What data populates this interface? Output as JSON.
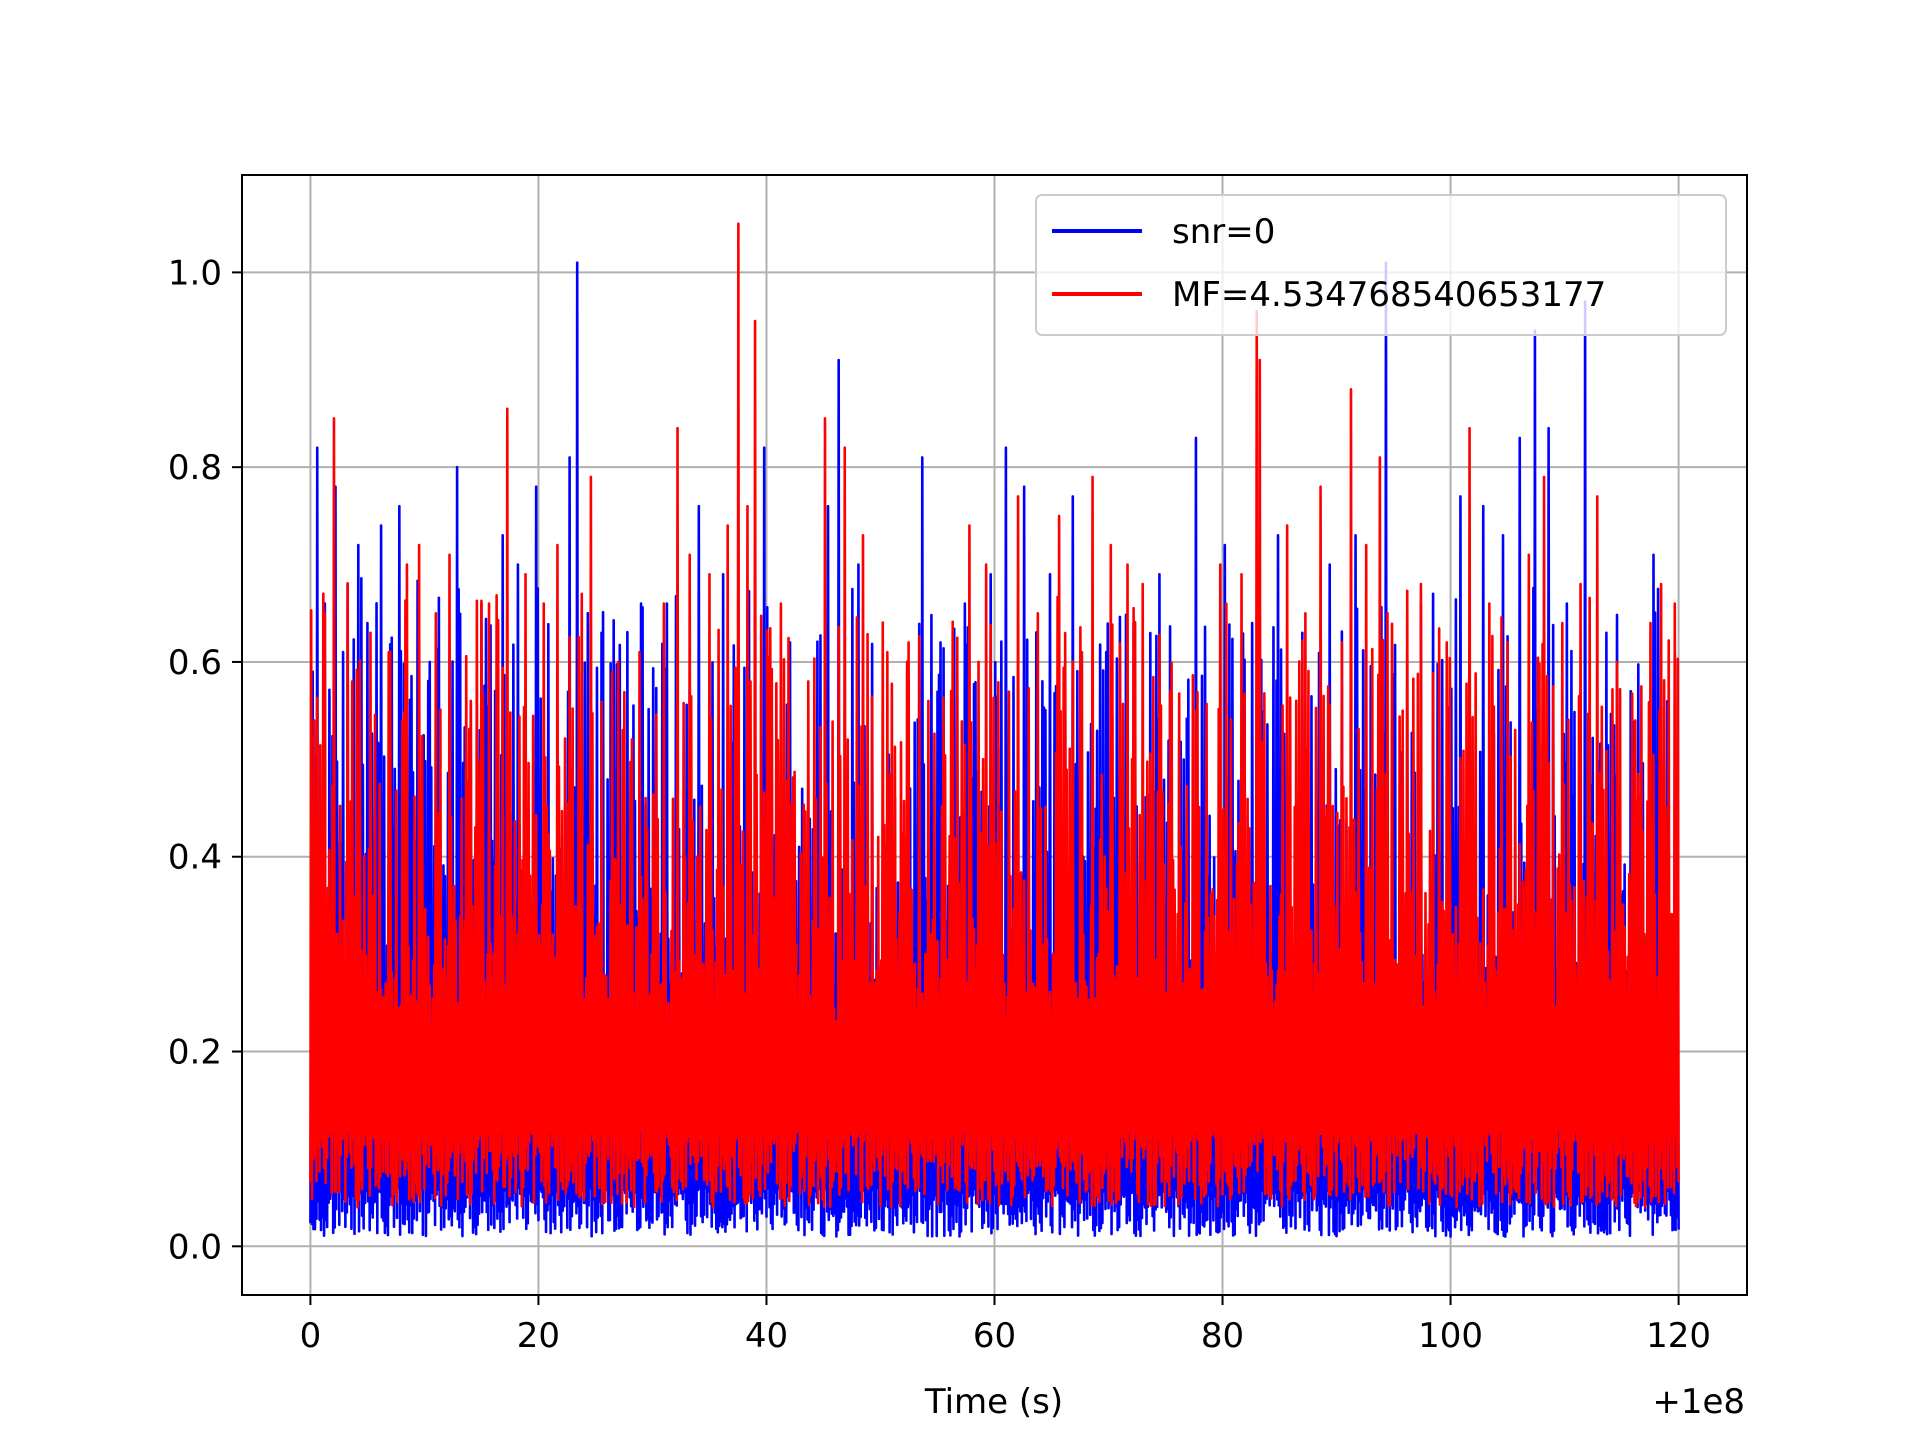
{
  "chart_data": {
    "type": "line",
    "title": "",
    "xlabel": "Time (s)",
    "ylabel": "",
    "x_offset_label": "+1e8",
    "xlim": [
      -6,
      126
    ],
    "ylim": [
      -0.05,
      1.1
    ],
    "x_ticks": [
      0,
      20,
      40,
      60,
      80,
      100,
      120
    ],
    "x_tick_labels": [
      "0",
      "20",
      "40",
      "60",
      "80",
      "100",
      "120"
    ],
    "y_ticks": [
      0.0,
      0.2,
      0.4,
      0.6,
      0.8,
      1.0
    ],
    "y_tick_labels": [
      "0.0",
      "0.2",
      "0.4",
      "0.6",
      "0.8",
      "1.0"
    ],
    "grid": true,
    "legend_position": "top-right",
    "x_range": [
      0,
      120
    ],
    "series": [
      {
        "name": "snr=0",
        "color": "#0000ff",
        "baseline": 0.01,
        "peaks": [
          [
            0.2,
            0.59
          ],
          [
            0.6,
            0.82
          ],
          [
            1.2,
            0.66
          ],
          [
            2.2,
            0.78
          ],
          [
            3.2,
            0.68
          ],
          [
            4.2,
            0.72
          ],
          [
            5.0,
            0.64
          ],
          [
            6.2,
            0.74
          ],
          [
            7.8,
            0.76
          ],
          [
            10.4,
            0.6
          ],
          [
            12.8,
            0.8
          ],
          [
            15.0,
            0.66
          ],
          [
            16.8,
            0.73
          ],
          [
            18.2,
            0.7
          ],
          [
            19.8,
            0.78
          ],
          [
            22.7,
            0.81
          ],
          [
            23.3,
            1.01
          ],
          [
            25.5,
            0.63
          ],
          [
            29.0,
            0.66
          ],
          [
            31.2,
            0.66
          ],
          [
            34.0,
            0.76
          ],
          [
            36.2,
            0.69
          ],
          [
            39.8,
            0.82
          ],
          [
            42.0,
            0.62
          ],
          [
            45.3,
            0.76
          ],
          [
            46.3,
            0.91
          ],
          [
            48.0,
            0.7
          ],
          [
            53.6,
            0.81
          ],
          [
            55.2,
            0.62
          ],
          [
            57.4,
            0.66
          ],
          [
            59.6,
            0.69
          ],
          [
            61.0,
            0.82
          ],
          [
            62.6,
            0.78
          ],
          [
            64.8,
            0.69
          ],
          [
            66.8,
            0.77
          ],
          [
            69.8,
            0.61
          ],
          [
            72.2,
            0.64
          ],
          [
            74.4,
            0.69
          ],
          [
            77.6,
            0.83
          ],
          [
            80.2,
            0.72
          ],
          [
            82.5,
            0.64
          ],
          [
            84.8,
            0.73
          ],
          [
            87.0,
            0.63
          ],
          [
            89.4,
            0.7
          ],
          [
            91.6,
            0.73
          ],
          [
            94.3,
            1.01
          ],
          [
            96.2,
            0.61
          ],
          [
            98.4,
            0.67
          ],
          [
            100.8,
            0.77
          ],
          [
            102.8,
            0.76
          ],
          [
            104.6,
            0.73
          ],
          [
            106.0,
            0.83
          ],
          [
            107.3,
            0.94
          ],
          [
            108.6,
            0.84
          ],
          [
            110.2,
            0.66
          ],
          [
            111.8,
            0.97
          ],
          [
            113.6,
            0.63
          ],
          [
            115.8,
            0.57
          ],
          [
            117.7,
            0.71
          ],
          [
            119.6,
            0.61
          ]
        ]
      },
      {
        "name": "MF=4.534768540653177",
        "color": "#ff0000",
        "baseline": 0.04,
        "peaks": [
          [
            0.3,
            0.54
          ],
          [
            1.2,
            0.65
          ],
          [
            2.0,
            0.85
          ],
          [
            3.6,
            0.58
          ],
          [
            5.2,
            0.63
          ],
          [
            6.8,
            0.61
          ],
          [
            8.4,
            0.7
          ],
          [
            9.5,
            0.72
          ],
          [
            11.0,
            0.65
          ],
          [
            12.2,
            0.71
          ],
          [
            14.0,
            0.56
          ],
          [
            15.6,
            0.66
          ],
          [
            17.2,
            0.86
          ],
          [
            18.8,
            0.69
          ],
          [
            20.4,
            0.66
          ],
          [
            21.6,
            0.72
          ],
          [
            23.8,
            0.67
          ],
          [
            24.6,
            0.79
          ],
          [
            26.4,
            0.59
          ],
          [
            28.8,
            0.61
          ],
          [
            31.0,
            0.66
          ],
          [
            32.1,
            0.84
          ],
          [
            33.2,
            0.71
          ],
          [
            35.0,
            0.69
          ],
          [
            36.5,
            0.74
          ],
          [
            37.5,
            1.05
          ],
          [
            38.3,
            0.76
          ],
          [
            38.9,
            0.95
          ],
          [
            41.2,
            0.66
          ],
          [
            43.6,
            0.58
          ],
          [
            45.1,
            0.85
          ],
          [
            46.8,
            0.82
          ],
          [
            48.4,
            0.73
          ],
          [
            50.6,
            0.61
          ],
          [
            52.4,
            0.62
          ],
          [
            54.1,
            0.56
          ],
          [
            56.2,
            0.57
          ],
          [
            57.8,
            0.74
          ],
          [
            59.2,
            0.7
          ],
          [
            62.0,
            0.77
          ],
          [
            63.8,
            0.65
          ],
          [
            65.6,
            0.75
          ],
          [
            67.6,
            0.61
          ],
          [
            68.6,
            0.79
          ],
          [
            70.2,
            0.72
          ],
          [
            71.6,
            0.7
          ],
          [
            73.0,
            0.68
          ],
          [
            75.4,
            0.57
          ],
          [
            77.6,
            0.55
          ],
          [
            79.8,
            0.7
          ],
          [
            81.6,
            0.69
          ],
          [
            82.9,
            0.96
          ],
          [
            83.3,
            0.91
          ],
          [
            85.6,
            0.74
          ],
          [
            87.2,
            0.65
          ],
          [
            88.6,
            0.78
          ],
          [
            90.4,
            0.62
          ],
          [
            91.2,
            0.88
          ],
          [
            92.6,
            0.72
          ],
          [
            93.7,
            0.81
          ],
          [
            95.8,
            0.55
          ],
          [
            97.4,
            0.68
          ],
          [
            99.6,
            0.62
          ],
          [
            101.6,
            0.84
          ],
          [
            103.4,
            0.66
          ],
          [
            105.0,
            0.62
          ],
          [
            106.8,
            0.71
          ],
          [
            108.2,
            0.79
          ],
          [
            109.8,
            0.64
          ],
          [
            111.4,
            0.68
          ],
          [
            112.8,
            0.77
          ],
          [
            114.6,
            0.6
          ],
          [
            116.2,
            0.54
          ],
          [
            117.5,
            0.64
          ],
          [
            118.4,
            0.68
          ],
          [
            119.6,
            0.66
          ]
        ]
      }
    ]
  }
}
